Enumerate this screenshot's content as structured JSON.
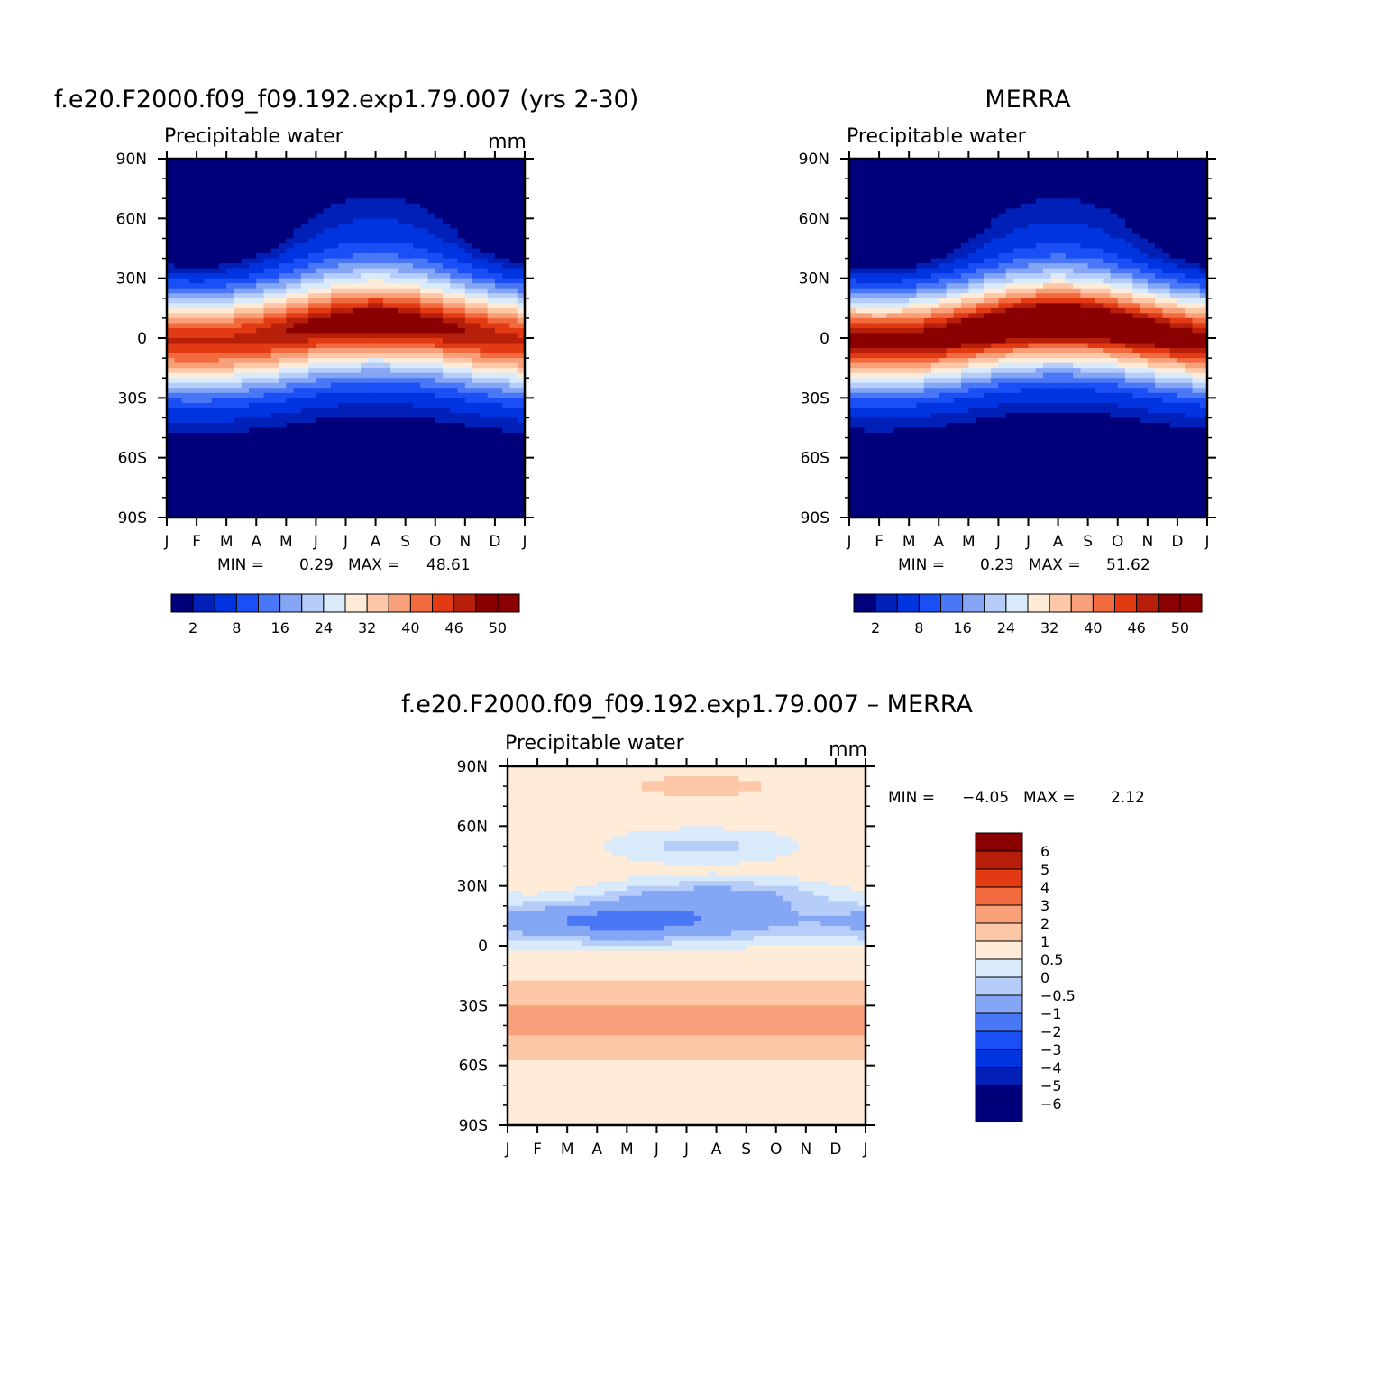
{
  "colors": {
    "scale14": [
      "#00007a",
      "#0020b8",
      "#0034e0",
      "#1a4ff5",
      "#4a77f5",
      "#84a6f5",
      "#b5cdf8",
      "#d9eafb",
      "#feebd8",
      "#fcc8a8",
      "#f8a07a",
      "#f26b3f",
      "#e23a12",
      "#b71f0b",
      "#8a0000"
    ],
    "diff": [
      "#00007a",
      "#0020b8",
      "#0034e0",
      "#1a4ff5",
      "#4a77f5",
      "#84a6f5",
      "#b5cdf8",
      "#d9eafb",
      "#feebd8",
      "#fcc8a8",
      "#f8a07a",
      "#f26b3f",
      "#e23a12",
      "#b71f0b",
      "#8a0000"
    ]
  },
  "chart_data": [
    {
      "id": "model",
      "type": "heatmap",
      "title": "f.e20.F2000.f09_f09.192.exp1.79.007 (yrs 2-30)",
      "subtitle_left": "Precipitable water",
      "subtitle_right": "mm",
      "x_labels": [
        "J",
        "F",
        "M",
        "A",
        "M",
        "J",
        "J",
        "A",
        "S",
        "O",
        "N",
        "D",
        "J"
      ],
      "y_labels": [
        "90N",
        "60N",
        "30N",
        "0",
        "30S",
        "60S",
        "90S"
      ],
      "ylim": [
        -90,
        90
      ],
      "stats": {
        "min_label": "MIN =",
        "min": "0.29",
        "max_label": "MAX =",
        "max": "48.61"
      },
      "field": {
        "base": 0.5,
        "amp": 47.6,
        "center": 3,
        "center_seasonal": 5,
        "width": 25,
        "eq_seasonal": 2
      },
      "colorbar": {
        "orientation": "horizontal",
        "levels": [
          2,
          8,
          16,
          24,
          32,
          40,
          46,
          50
        ],
        "thresholds": [
          2,
          4,
          8,
          12,
          16,
          20,
          24,
          28,
          32,
          36,
          40,
          43,
          46,
          48
        ]
      }
    },
    {
      "id": "obs",
      "type": "heatmap",
      "title": "MERRA",
      "subtitle_left": "Precipitable water",
      "subtitle_right": "",
      "x_labels": [
        "J",
        "F",
        "M",
        "A",
        "M",
        "J",
        "J",
        "A",
        "S",
        "O",
        "N",
        "D",
        "J"
      ],
      "y_labels": [
        "90N",
        "60N",
        "30N",
        "0",
        "30S",
        "60S",
        "90S"
      ],
      "ylim": [
        -90,
        90
      ],
      "stats": {
        "min_label": "MIN =",
        "min": "0.23",
        "max_label": "MAX =",
        "max": "51.62"
      },
      "field": {
        "base": 0.4,
        "amp": 51.0,
        "center": 3,
        "center_seasonal": 5,
        "width": 24,
        "eq_seasonal": 2
      },
      "colorbar": {
        "orientation": "horizontal",
        "levels": [
          2,
          8,
          16,
          24,
          32,
          40,
          46,
          50
        ],
        "thresholds": [
          2,
          4,
          8,
          12,
          16,
          20,
          24,
          28,
          32,
          36,
          40,
          43,
          46,
          48
        ]
      }
    },
    {
      "id": "diff",
      "type": "heatmap",
      "title": "f.e20.F2000.f09_f09.192.exp1.79.007 – MERRA",
      "subtitle_left": "Precipitable water",
      "subtitle_right": "mm",
      "x_labels": [
        "J",
        "F",
        "M",
        "A",
        "M",
        "J",
        "J",
        "A",
        "S",
        "O",
        "N",
        "D",
        "J"
      ],
      "y_labels": [
        "90N",
        "60N",
        "30N",
        "0",
        "30S",
        "60S",
        "90S"
      ],
      "ylim": [
        -90,
        90
      ],
      "stats": {
        "min_label": "MIN =",
        "min": "−4.05",
        "max_label": "MAX =",
        "max": "2.12"
      },
      "colorbar": {
        "orientation": "vertical",
        "labels": [
          "6",
          "5",
          "4",
          "3",
          "2",
          "1",
          "0.5",
          "0",
          "−0.5",
          "−1",
          "−2",
          "−3",
          "−4",
          "−5",
          "−6"
        ],
        "thresholds": [
          -6,
          -5,
          -4,
          -3,
          -2,
          -1,
          -0.5,
          0,
          0.5,
          1,
          2,
          3,
          4,
          5,
          6
        ]
      }
    }
  ]
}
